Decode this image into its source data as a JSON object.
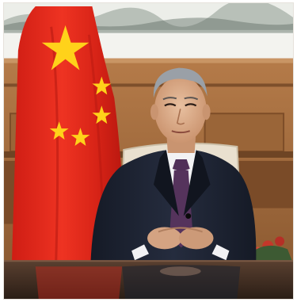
{
  "image": {
    "alt": "",
    "colors": {
      "flag_red": "#e2261b",
      "flag_star": "#ffd21a",
      "suit": "#1e2434",
      "tie": "#55335c",
      "wood_panel": "#a06b3e",
      "painting": "#e9ebe7",
      "desk": "#3a2a1f"
    }
  }
}
